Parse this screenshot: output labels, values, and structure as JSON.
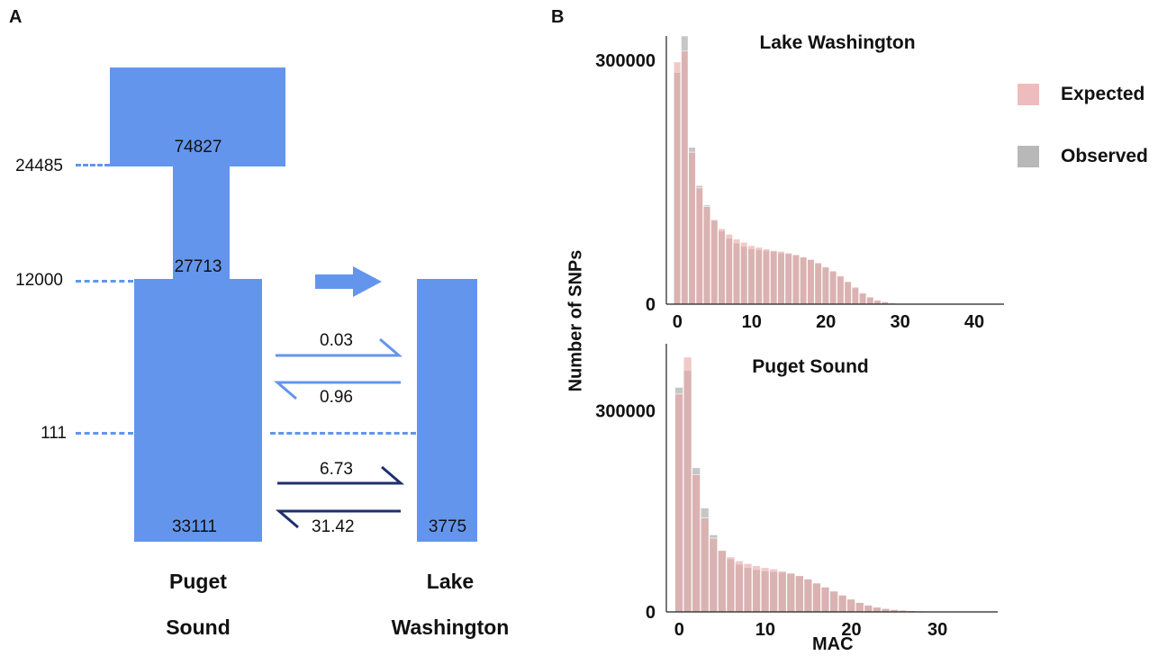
{
  "panel_a": {
    "letter": "A",
    "time_labels": [
      "24485",
      "12000",
      "111"
    ],
    "block_labels": {
      "ancestral": "74827",
      "bottleneck": "27713",
      "puget": "33111",
      "lake": "3775"
    },
    "migration": {
      "m1": "0.03",
      "m2": "0.96",
      "m3": "6.73",
      "m4": "31.42"
    },
    "pop_labels": {
      "puget_1": "Puget",
      "puget_2": "Sound",
      "lake_1": "Lake",
      "lake_2": "Washington"
    },
    "colors": {
      "block": "#6495ed",
      "early_migration": "#6495ed",
      "recent_migration": "#1f2f6f"
    }
  },
  "panel_b": {
    "letter": "B",
    "ylabel": "Number of SNPs",
    "xlabel": "MAC",
    "legend": [
      {
        "label": "Expected",
        "color": "#e8a5a5"
      },
      {
        "label": "Observed",
        "color": "#a0a0a0"
      }
    ]
  },
  "chart_data": [
    {
      "type": "bar",
      "title": "Lake Washington",
      "xlabel": "",
      "ylabel": "Number of SNPs",
      "xlim": [
        -1.5,
        44
      ],
      "ylim": [
        0,
        330000
      ],
      "xticks": [
        "0",
        "10",
        "20",
        "30",
        "40"
      ],
      "yticks": [
        "0",
        "300000"
      ],
      "x": [
        0,
        1,
        2,
        3,
        4,
        5,
        6,
        7,
        8,
        9,
        10,
        11,
        12,
        13,
        14,
        15,
        16,
        17,
        18,
        19,
        20,
        21,
        22,
        23,
        24,
        25,
        26,
        27,
        28,
        29,
        30
      ],
      "series": [
        {
          "name": "Expected",
          "values": [
            298000,
            312000,
            187000,
            143000,
            120000,
            104000,
            93000,
            86000,
            80000,
            76000,
            72000,
            70000,
            68000,
            66000,
            65000,
            63000,
            61000,
            58000,
            55000,
            51000,
            46000,
            41000,
            35000,
            28000,
            21000,
            14000,
            9000,
            5000,
            3000,
            1500,
            700
          ]
        },
        {
          "name": "Observed",
          "values": [
            285000,
            330000,
            193000,
            146000,
            122000,
            103000,
            90000,
            81000,
            75000,
            71000,
            68000,
            67000,
            66000,
            65000,
            63000,
            62000,
            60000,
            58000,
            55000,
            50000,
            45000,
            40000,
            34000,
            27000,
            20000,
            13000,
            8000,
            4500,
            2500,
            1200,
            500
          ]
        }
      ]
    },
    {
      "type": "bar",
      "title": "Puget Sound",
      "xlabel": "MAC",
      "ylabel": "Number of SNPs",
      "xlim": [
        -1.5,
        37
      ],
      "ylim": [
        0,
        400000
      ],
      "xticks": [
        "0",
        "10",
        "20",
        "30"
      ],
      "yticks": [
        "0",
        "300000"
      ],
      "x": [
        0,
        1,
        2,
        3,
        4,
        5,
        6,
        7,
        8,
        9,
        10,
        11,
        12,
        13,
        14,
        15,
        16,
        17,
        18,
        19,
        20,
        21,
        22,
        23,
        24,
        25,
        26,
        27,
        28,
        29,
        30,
        31,
        32,
        33,
        34
      ],
      "series": [
        {
          "name": "Expected",
          "values": [
            325000,
            380000,
            205000,
            140000,
            110000,
            92000,
            82000,
            76000,
            72000,
            69000,
            66000,
            64000,
            61000,
            58000,
            54000,
            49000,
            43000,
            37000,
            31000,
            25000,
            19000,
            14000,
            10000,
            7000,
            5000,
            3500,
            2500,
            1800,
            1300,
            900,
            700,
            500,
            400,
            300,
            200
          ]
        },
        {
          "name": "Observed",
          "values": [
            335000,
            360000,
            215000,
            155000,
            115000,
            91000,
            79000,
            71000,
            66000,
            63000,
            61000,
            60000,
            59000,
            57000,
            54000,
            49000,
            43000,
            37000,
            31000,
            25000,
            19000,
            14000,
            10000,
            7000,
            5000,
            3500,
            2500,
            1800,
            1300,
            900,
            700,
            500,
            400,
            300,
            200
          ]
        }
      ]
    }
  ]
}
